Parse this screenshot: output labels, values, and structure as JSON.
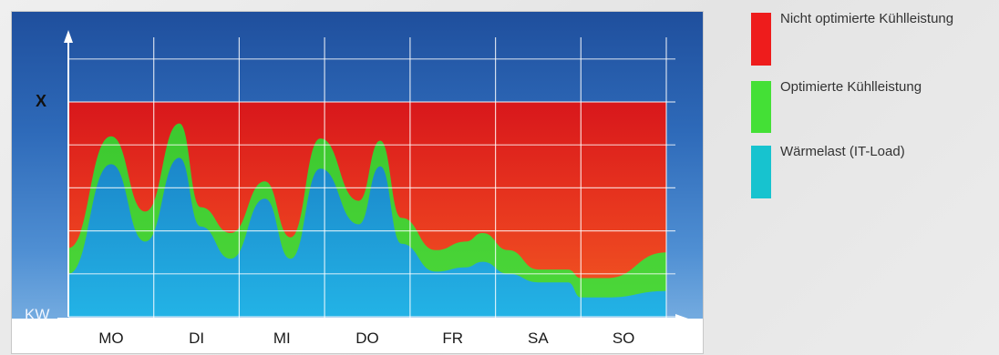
{
  "chart_data": {
    "type": "area",
    "categories": [
      "MO",
      "DI",
      "MI",
      "DO",
      "FR",
      "SA",
      "SO"
    ],
    "y_tick_label": "X",
    "y_unit_label": "KW",
    "ylim": [
      0,
      5
    ],
    "grid": true,
    "legend_position": "right",
    "x": [
      0.0,
      0.5,
      0.9,
      1.3,
      1.55,
      1.9,
      2.3,
      2.6,
      2.95,
      3.4,
      3.65,
      3.9,
      4.3,
      4.65,
      4.85,
      5.15,
      5.5,
      5.85,
      6.0,
      6.3,
      7.0
    ],
    "series": [
      {
        "name": "Wärmelast (IT-Load)",
        "color": "#17c3cf",
        "values": [
          1.0,
          3.55,
          1.75,
          3.7,
          2.1,
          1.35,
          2.75,
          1.35,
          3.45,
          2.15,
          3.5,
          1.7,
          1.05,
          1.15,
          1.28,
          1.0,
          0.8,
          0.8,
          0.45,
          0.45,
          0.6
        ]
      },
      {
        "name": "Optimierte Kühlleistung",
        "color": "#44e036",
        "values": [
          1.6,
          4.2,
          2.45,
          4.5,
          2.55,
          1.95,
          3.15,
          1.85,
          4.15,
          2.7,
          4.1,
          2.3,
          1.55,
          1.75,
          1.95,
          1.55,
          1.1,
          1.1,
          0.9,
          0.9,
          1.5
        ]
      },
      {
        "name": "Nicht optimierte Kühlleistung",
        "color": "#ee1c1c",
        "values": [
          5,
          5,
          5,
          5,
          5,
          5,
          5,
          5,
          5,
          5,
          5,
          5,
          5,
          5,
          5,
          5,
          5,
          5,
          5,
          5,
          5
        ]
      }
    ]
  }
}
